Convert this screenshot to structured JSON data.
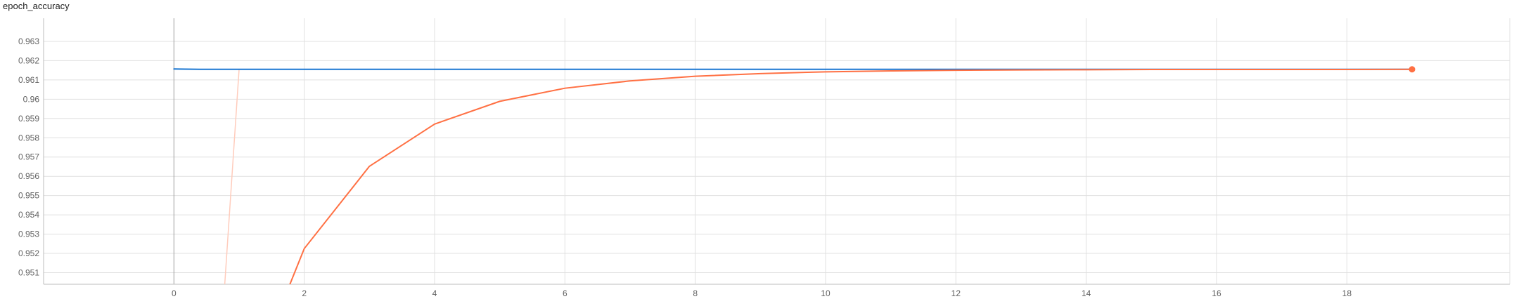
{
  "chart_data": {
    "type": "line",
    "title": "epoch_accuracy",
    "xlabel": "",
    "ylabel": "",
    "xlim": [
      -2,
      20.5
    ],
    "ylim": [
      0.9504,
      0.9642
    ],
    "x_ticks": [
      0,
      2,
      4,
      6,
      8,
      10,
      12,
      14,
      16,
      18
    ],
    "x_tick_labels": [
      "0",
      "2",
      "4",
      "6",
      "8",
      "10",
      "12",
      "14",
      "16",
      "18"
    ],
    "y_ticks": [
      0.951,
      0.952,
      0.953,
      0.954,
      0.955,
      0.956,
      0.957,
      0.958,
      0.959,
      0.96,
      0.961,
      0.962,
      0.963
    ],
    "y_tick_labels": [
      "0.951",
      "0.952",
      "0.953",
      "0.954",
      "0.955",
      "0.956",
      "0.957",
      "0.958",
      "0.959",
      "0.96",
      "0.961",
      "0.962",
      "0.963"
    ],
    "grid": true,
    "series": [
      {
        "color": "#1976d2",
        "style": "smoothed",
        "x": [
          0,
          0.4,
          2,
          4,
          6,
          8,
          10,
          12,
          14,
          16,
          19
        ],
        "values": [
          0.96157,
          0.96155,
          0.96155,
          0.96155,
          0.96155,
          0.96155,
          0.96155,
          0.96155,
          0.96155,
          0.96155,
          0.96155
        ]
      },
      {
        "color": "#ff7043",
        "style": "smoothed",
        "x": [
          1.78,
          2,
          3,
          4,
          5,
          6,
          7,
          8,
          9,
          10,
          11,
          12,
          13,
          14,
          15,
          16,
          17,
          18,
          19
        ],
        "values": [
          0.9504,
          0.95225,
          0.95652,
          0.95871,
          0.95989,
          0.96057,
          0.96095,
          0.96119,
          0.96133,
          0.96142,
          0.96147,
          0.9615,
          0.96152,
          0.96153,
          0.96154,
          0.96154,
          0.96154,
          0.96154,
          0.96155
        ]
      },
      {
        "color": "#ffccbc",
        "style": "raw",
        "x": [
          0.78,
          1,
          2,
          3,
          4,
          5,
          6,
          7,
          8,
          9,
          10,
          11,
          12,
          13,
          14,
          15,
          16,
          17,
          18,
          19
        ],
        "values": [
          0.9504,
          0.96155,
          0.96155,
          0.96155,
          0.96155,
          0.96155,
          0.96155,
          0.96155,
          0.96155,
          0.96155,
          0.96155,
          0.96155,
          0.96155,
          0.96155,
          0.96155,
          0.96155,
          0.96155,
          0.96155,
          0.96155,
          0.96155
        ]
      }
    ],
    "highlighted_point": {
      "x": 19,
      "y": 0.96155,
      "color": "#ff7043"
    }
  }
}
